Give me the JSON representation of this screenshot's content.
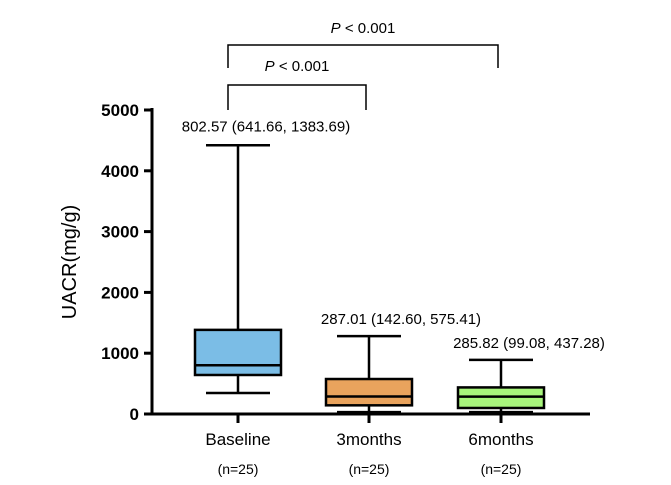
{
  "chart_data": {
    "type": "box",
    "title": "",
    "ylabel": "UACR(mg/g)",
    "xlabel": "",
    "ylim": [
      0,
      5000
    ],
    "yticks": [
      0,
      1000,
      2000,
      3000,
      4000,
      5000
    ],
    "yticklabels": [
      "0",
      "1000",
      "2000",
      "3000",
      "4000",
      "5000"
    ],
    "categories": [
      "Baseline",
      "3months",
      "6months"
    ],
    "n_labels": [
      "(n=25)",
      "(n=25)",
      "(n=25)"
    ],
    "boxes": [
      {
        "name": "Baseline",
        "min": 345,
        "q1": 641.66,
        "median": 802.57,
        "q3": 1383.69,
        "max": 4420,
        "color": "#7bbde6",
        "label": "802.57 (641.66, 1383.69)"
      },
      {
        "name": "3months",
        "min": 30,
        "q1": 142.6,
        "median": 287.01,
        "q3": 575.41,
        "max": 1280,
        "color": "#e9a35d",
        "label": "287.01 (142.60, 575.41)"
      },
      {
        "name": "6months",
        "min": 30,
        "q1": 99.08,
        "median": 285.82,
        "q3": 437.28,
        "max": 890,
        "color": "#a8f57c",
        "label": "285.82 (99.08, 437.28)"
      }
    ],
    "comparisons": [
      {
        "from": "Baseline",
        "to": "6months",
        "p_prefix": "P",
        "p_text": " < 0.001"
      },
      {
        "from": "Baseline",
        "to": "3months",
        "p_prefix": "P",
        "p_text": " < 0.001"
      }
    ]
  }
}
